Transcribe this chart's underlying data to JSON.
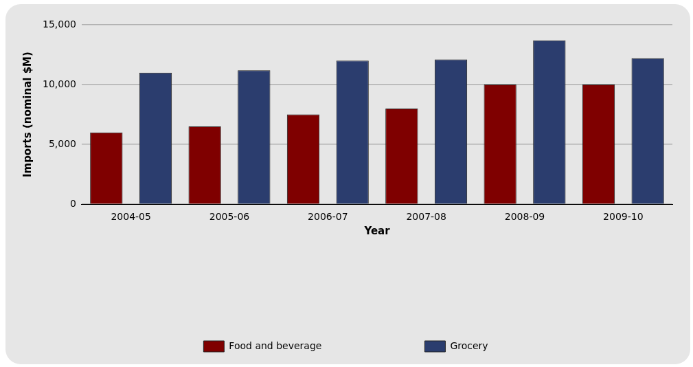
{
  "chart_data": {
    "type": "bar",
    "xlabel": "Year",
    "ylabel": "Imports (nominal $M)",
    "categories": [
      "2004-05",
      "2005-06",
      "2006-07",
      "2007-08",
      "2008-09",
      "2009-10"
    ],
    "series": [
      {
        "name": "Food and beverage",
        "color": "#7f0000",
        "values": [
          6000,
          6500,
          7500,
          8000,
          10000,
          10000
        ]
      },
      {
        "name": "Grocery",
        "color": "#2b3d6e",
        "values": [
          11000,
          11200,
          12000,
          12100,
          13700,
          12200
        ]
      }
    ],
    "ylim": [
      0,
      15000
    ],
    "yticks": [
      {
        "value": 0,
        "label": "0"
      },
      {
        "value": 5000,
        "label": "5,000"
      },
      {
        "value": 10000,
        "label": "10,000"
      },
      {
        "value": 15000,
        "label": "15,000"
      }
    ],
    "grid": "y",
    "legend": "bottom"
  }
}
